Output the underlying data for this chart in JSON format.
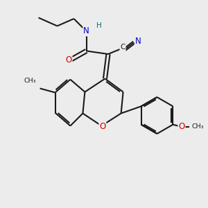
{
  "bg_color": "#ececec",
  "bond_color": "#1a1a1a",
  "O_color": "#cc0000",
  "N_color": "#0000cc",
  "H_color": "#007070",
  "C_color": "#1a1a1a",
  "lw": 1.5,
  "figsize": [
    3.0,
    3.0
  ],
  "dpi": 100,
  "xlim": [
    0,
    10
  ],
  "ylim": [
    0,
    10
  ]
}
